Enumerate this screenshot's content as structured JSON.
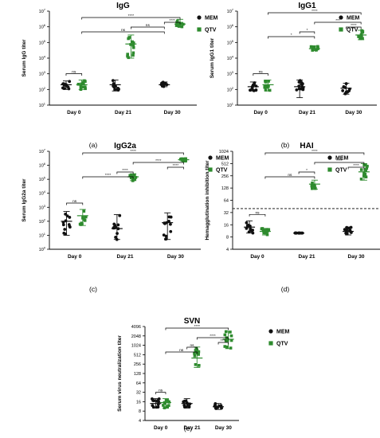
{
  "chart_data": [
    {
      "type": "scatter",
      "panel": "(a)",
      "title": "IgG",
      "ylabel": "Serum IgG titer",
      "yscale": "log",
      "ylim": [
        10,
        10000000
      ],
      "yticks": [
        "10^1",
        "10^2",
        "10^3",
        "10^4",
        "10^5",
        "10^6",
        "10^7"
      ],
      "categories": [
        "Day 0",
        "Day 21",
        "Day 30"
      ],
      "legend": [
        "MEM",
        "QTV"
      ],
      "series": [
        {
          "name": "MEM",
          "values": [
            200,
            200,
            200
          ],
          "spread": [
            [
              100,
              350
            ],
            [
              80,
              400
            ],
            [
              150,
              300
            ]
          ]
        },
        {
          "name": "QTV",
          "values": [
            200,
            80000,
            1500000
          ],
          "spread": [
            [
              100,
              400
            ],
            [
              10000,
              300000
            ],
            [
              1000000,
              3000000
            ]
          ]
        }
      ],
      "significance": [
        {
          "label": "ns",
          "from": 0,
          "to": 1,
          "level": 5
        },
        {
          "label": "ns",
          "from": 1,
          "to": 4,
          "level": 1
        },
        {
          "label": "ns",
          "from": 3,
          "to": 4,
          "level": 2
        },
        {
          "label": "****",
          "from": 4,
          "to": 5,
          "level": 3
        },
        {
          "label": "****",
          "from": 1,
          "to": 5,
          "level": 4
        }
      ]
    },
    {
      "type": "scatter",
      "panel": "(b)",
      "title": "IgG1",
      "ylabel": "Serum IgG1 titer",
      "yscale": "log",
      "ylim": [
        10,
        10000000
      ],
      "yticks": [
        "10^1",
        "10^2",
        "10^3",
        "10^4",
        "10^5",
        "10^6",
        "10^7"
      ],
      "categories": [
        "Day 0",
        "Day 21",
        "Day 30"
      ],
      "legend": [
        "MEM",
        "QTV"
      ],
      "series": [
        {
          "name": "MEM",
          "values": [
            150,
            150,
            120
          ],
          "spread": [
            [
              80,
              300
            ],
            [
              30,
              400
            ],
            [
              50,
              250
            ]
          ]
        },
        {
          "name": "QTV",
          "values": [
            200,
            40000,
            300000
          ],
          "spread": [
            [
              80,
              400
            ],
            [
              30000,
              60000
            ],
            [
              150000,
              600000
            ]
          ]
        }
      ],
      "significance": [
        {
          "label": "ns",
          "from": 0,
          "to": 1,
          "level": 5
        },
        {
          "label": "*",
          "from": 1,
          "to": 3,
          "level": 1
        },
        {
          "label": "*",
          "from": 2,
          "to": 3,
          "level": 2
        },
        {
          "label": "****",
          "from": 4,
          "to": 5,
          "level": 3
        },
        {
          "label": "***",
          "from": 3,
          "to": 5,
          "level": 4
        },
        {
          "label": "****",
          "from": 1,
          "to": 5,
          "level": 6
        }
      ]
    },
    {
      "type": "scatter",
      "panel": "(c)",
      "title": "IgG2a",
      "ylabel": "Serum IgG2a titer",
      "yscale": "log",
      "ylim": [
        1,
        10000000
      ],
      "yticks": [
        "10^0",
        "10^1",
        "10^2",
        "10^3",
        "10^4",
        "10^5",
        "10^6",
        "10^7"
      ],
      "categories": [
        "Day 0",
        "Day 21",
        "Day 30"
      ],
      "legend": [
        "MEM",
        "QTV"
      ],
      "series": [
        {
          "name": "MEM",
          "values": [
            100,
            30,
            80
          ],
          "spread": [
            [
              10,
              500
            ],
            [
              5,
              300
            ],
            [
              5,
              400
            ]
          ]
        },
        {
          "name": "QTV",
          "values": [
            250,
            150000,
            2500000
          ],
          "spread": [
            [
              50,
              700
            ],
            [
              80000,
              250000
            ],
            [
              2000000,
              3000000
            ]
          ]
        }
      ],
      "significance": [
        {
          "label": "ns",
          "from": 0,
          "to": 1,
          "level": 5
        },
        {
          "label": "****",
          "from": 1,
          "to": 3,
          "level": 1
        },
        {
          "label": "****",
          "from": 2,
          "to": 3,
          "level": 2
        },
        {
          "label": "****",
          "from": 4,
          "to": 5,
          "level": 3
        },
        {
          "label": "****",
          "from": 3,
          "to": 5,
          "level": 4
        },
        {
          "label": "****",
          "from": 1,
          "to": 5,
          "level": 6
        }
      ]
    },
    {
      "type": "scatter",
      "panel": "(d)",
      "title": "HAI",
      "ylabel": "Hemagglutination inhibition titer",
      "yscale": "log2",
      "ylim": [
        4,
        1024
      ],
      "yticks": [
        "4",
        "8",
        "16",
        "32",
        "64",
        "128",
        "256",
        "512",
        "1024"
      ],
      "reference_line": 40,
      "categories": [
        "Day 0",
        "Day 21",
        "Day 30"
      ],
      "legend": [
        "MEM",
        "QTV"
      ],
      "series": [
        {
          "name": "MEM",
          "values": [
            14,
            10,
            11
          ],
          "spread": [
            [
              10,
              20
            ],
            [
              10,
              10
            ],
            [
              9,
              14
            ]
          ]
        },
        {
          "name": "QTV",
          "values": [
            11,
            160,
            320
          ],
          "spread": [
            [
              9,
              13
            ],
            [
              120,
              200
            ],
            [
              200,
              512
            ]
          ]
        }
      ],
      "significance": [
        {
          "label": "ns",
          "from": 0,
          "to": 1,
          "level": 5
        },
        {
          "label": "ns",
          "from": 1,
          "to": 3,
          "level": 1
        },
        {
          "label": "*",
          "from": 2,
          "to": 3,
          "level": 2
        },
        {
          "label": "****",
          "from": 4,
          "to": 5,
          "level": 3
        },
        {
          "label": "****",
          "from": 3,
          "to": 5,
          "level": 4
        },
        {
          "label": "****",
          "from": 1,
          "to": 5,
          "level": 6
        }
      ]
    },
    {
      "type": "scatter",
      "panel": "(e)",
      "title": "SVN",
      "ylabel": "Serum virus neutralization titer",
      "yscale": "log2",
      "ylim": [
        4,
        4096
      ],
      "yticks": [
        "4",
        "8",
        "16",
        "32",
        "64",
        "128",
        "256",
        "512",
        "1024",
        "2048",
        "4096"
      ],
      "categories": [
        "Day 0",
        "Day 21",
        "Day 30"
      ],
      "legend": [
        "MEM",
        "QTV"
      ],
      "series": [
        {
          "name": "MEM",
          "values": [
            14,
            14,
            11
          ],
          "spread": [
            [
              10,
              20
            ],
            [
              10,
              20
            ],
            [
              9,
              14
            ]
          ]
        },
        {
          "name": "QTV",
          "values": [
            15,
            400,
            1600
          ],
          "spread": [
            [
              10,
              20
            ],
            [
              200,
              900
            ],
            [
              800,
              2900
            ]
          ]
        }
      ],
      "significance": [
        {
          "label": "ns",
          "from": 0,
          "to": 1,
          "level": 5
        },
        {
          "label": "ns",
          "from": 1,
          "to": 3,
          "level": 1
        },
        {
          "label": "ns",
          "from": 2,
          "to": 3,
          "level": 2
        },
        {
          "label": "****",
          "from": 4,
          "to": 5,
          "level": 3
        },
        {
          "label": "****",
          "from": 3,
          "to": 5,
          "level": 4
        },
        {
          "label": "****",
          "from": 1,
          "to": 5,
          "level": 6
        }
      ]
    }
  ],
  "colors": {
    "mem": "#111111",
    "qtv": "#2e8b2e",
    "axis": "#000000"
  }
}
